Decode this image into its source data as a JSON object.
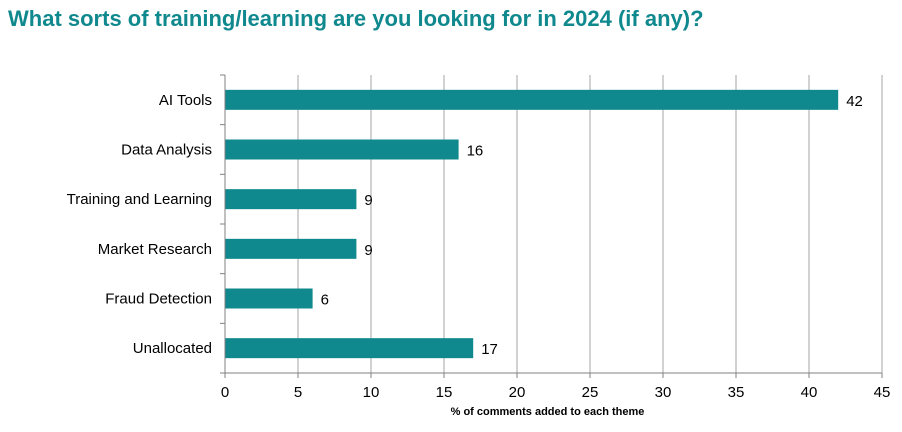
{
  "title": "What sorts of training/learning are you looking for in 2024 (if any)?",
  "colors": {
    "title": "#10898e",
    "bar": "#10898e",
    "grid": "#a6a6a6",
    "axis": "#808080"
  },
  "chart_data": {
    "type": "bar",
    "orientation": "horizontal",
    "categories": [
      "AI Tools",
      "Data Analysis",
      "Training and Learning",
      "Market Research",
      "Fraud Detection",
      "Unallocated"
    ],
    "values": [
      42,
      16,
      9,
      9,
      6,
      17
    ],
    "value_labels": [
      "42",
      "16",
      "9",
      "9",
      "6",
      "17"
    ],
    "xlabel": "% of comments added to each theme",
    "xlim": [
      0,
      45
    ],
    "xticks": [
      0,
      5,
      10,
      15,
      20,
      25,
      30,
      35,
      40,
      45
    ],
    "xtick_labels": [
      "0",
      "5",
      "10",
      "15",
      "20",
      "25",
      "30",
      "35",
      "40",
      "45"
    ],
    "grid": "vertical",
    "legend": "none"
  }
}
